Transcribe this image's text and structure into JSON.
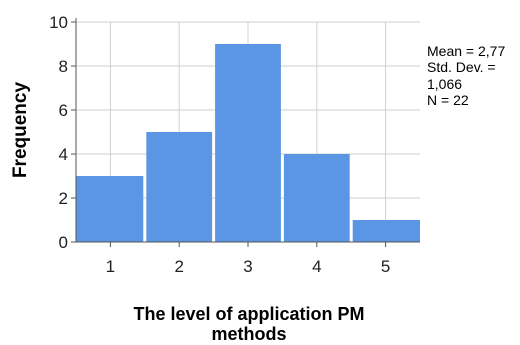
{
  "chart_data": {
    "type": "bar",
    "categories": [
      "1",
      "2",
      "3",
      "4",
      "5"
    ],
    "values": [
      3,
      5,
      9,
      4,
      1
    ],
    "ylabel": "Frequency",
    "xlabel": [
      "The level of application PM",
      "methods"
    ],
    "ylim": [
      0,
      10
    ],
    "yticks": [
      "0",
      "2",
      "4",
      "6",
      "8",
      "10"
    ],
    "grid": true,
    "bar_color": "#5B96E5",
    "stats": [
      "Mean = 2,77",
      "Std. Dev. =",
      "1,066",
      "N = 22"
    ],
    "legend_placement": "right"
  }
}
